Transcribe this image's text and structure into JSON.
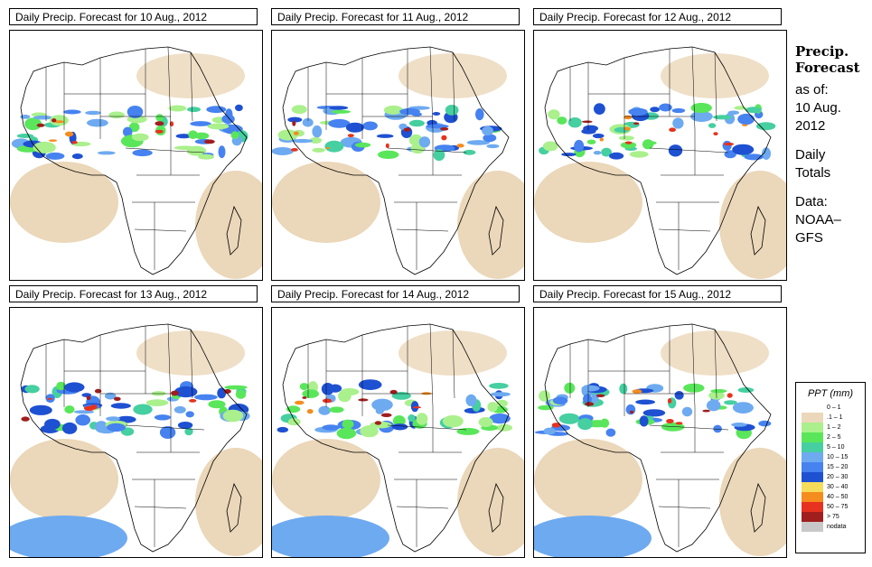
{
  "panels": [
    {
      "title": "Daily Precip. Forecast for  10 Aug., 2012"
    },
    {
      "title": "Daily Precip. Forecast for  11 Aug., 2012"
    },
    {
      "title": "Daily Precip. Forecast for  12 Aug., 2012"
    },
    {
      "title": "Daily Precip. Forecast for  13 Aug., 2012"
    },
    {
      "title": "Daily Precip. Forecast for  14 Aug., 2012"
    },
    {
      "title": "Daily Precip. Forecast for  15 Aug., 2012"
    }
  ],
  "sidebar": {
    "heading_line1": "Precip.",
    "heading_line2": "Forecast",
    "asof_label": "as of:",
    "date_line1": "10 Aug.",
    "date_line2": "2012",
    "totals_line1": "Daily",
    "totals_line2": "Totals",
    "data_label": "Data:",
    "source_line1": "NOAA–",
    "source_line2": "GFS"
  },
  "legend": {
    "title": "PPT (mm)",
    "items": [
      {
        "label": "0 – 1",
        "color": "#ffffff"
      },
      {
        "label": ".1 – 1",
        "color": "#ebd7b9"
      },
      {
        "label": "1 – 2",
        "color": "#aaf08c"
      },
      {
        "label": "2 – 5",
        "color": "#5ae65a"
      },
      {
        "label": "5 – 10",
        "color": "#46cfa0"
      },
      {
        "label": "10 – 15",
        "color": "#6eaaf0"
      },
      {
        "label": "15 – 20",
        "color": "#4682f0"
      },
      {
        "label": "20 – 30",
        "color": "#1e50d2"
      },
      {
        "label": "30 – 40",
        "color": "#f5dc5a"
      },
      {
        "label": "40 – 50",
        "color": "#f58c1e"
      },
      {
        "label": "50 – 75",
        "color": "#e6321e"
      },
      {
        "label": "> 75",
        "color": "#a01e1e"
      },
      {
        "label": "nodata",
        "color": "#c8c8c8"
      }
    ]
  }
}
